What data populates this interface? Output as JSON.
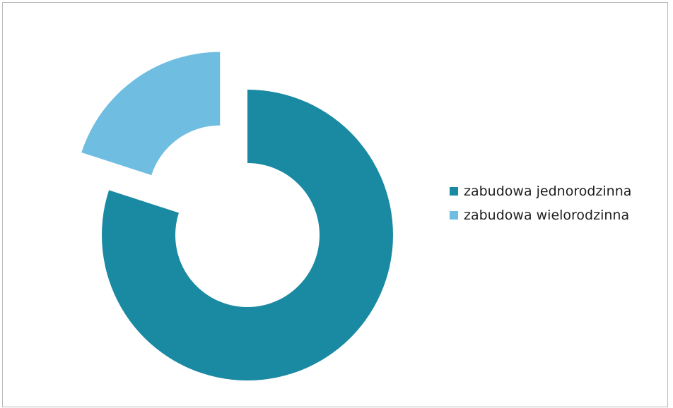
{
  "chart_data": {
    "type": "pie",
    "variant": "exploded-donut",
    "title": "",
    "series": [
      {
        "values": [
          80,
          20
        ]
      }
    ],
    "categories": [
      "zabudowa jednorodzinna",
      "zabudowa wielorodzinna"
    ],
    "values": [
      80,
      20
    ],
    "legend": {
      "position": "right",
      "items": [
        "zabudowa jednorodzinna",
        "zabudowa wielorodzinna"
      ]
    },
    "colors": [
      "#1a8aa3",
      "#6fbde1"
    ]
  }
}
